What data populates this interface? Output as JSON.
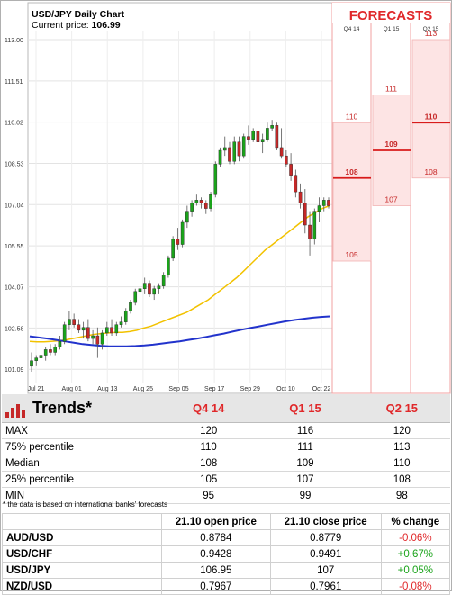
{
  "chart_data": {
    "type": "candlestick",
    "title": "USD/JPY Daily Chart",
    "current_price_label": "Current price:",
    "current_price": "106.99",
    "y_ticks": [
      "113.00",
      "111.51",
      "110.02",
      "108.53",
      "107.04",
      "105.55",
      "104.07",
      "102.58",
      "101.09"
    ],
    "ylim": [
      101.0,
      113.0
    ],
    "x_ticks": [
      "Jul 21",
      "Aug 01",
      "Aug 13",
      "Aug 25",
      "Sep 05",
      "Sep 17",
      "Sep 29",
      "Oct 10",
      "Oct 22"
    ],
    "candles": [
      [
        101.2,
        101.7,
        101.0,
        101.4
      ],
      [
        101.4,
        101.6,
        101.2,
        101.5
      ],
      [
        101.5,
        101.7,
        101.4,
        101.6
      ],
      [
        101.6,
        101.9,
        101.4,
        101.8
      ],
      [
        101.8,
        102.0,
        101.6,
        101.7
      ],
      [
        101.7,
        102.0,
        101.6,
        101.9
      ],
      [
        101.9,
        102.3,
        101.8,
        102.1
      ],
      [
        102.1,
        102.8,
        102.0,
        102.7
      ],
      [
        102.7,
        103.2,
        102.5,
        102.9
      ],
      [
        102.9,
        103.1,
        102.6,
        102.7
      ],
      [
        102.7,
        102.9,
        102.4,
        102.5
      ],
      [
        102.5,
        102.8,
        102.2,
        102.6
      ],
      [
        102.6,
        102.9,
        102.1,
        102.2
      ],
      [
        102.2,
        102.5,
        102.0,
        102.3
      ],
      [
        102.3,
        102.6,
        101.5,
        102.0
      ],
      [
        102.0,
        102.5,
        101.8,
        102.4
      ],
      [
        102.4,
        102.8,
        102.3,
        102.6
      ],
      [
        102.6,
        102.9,
        102.3,
        102.4
      ],
      [
        102.4,
        102.8,
        102.3,
        102.7
      ],
      [
        102.7,
        103.0,
        102.6,
        102.8
      ],
      [
        102.8,
        103.3,
        102.7,
        103.2
      ],
      [
        103.2,
        103.6,
        103.1,
        103.5
      ],
      [
        103.5,
        104.0,
        103.4,
        103.9
      ],
      [
        103.9,
        104.2,
        103.7,
        104.0
      ],
      [
        104.0,
        104.4,
        103.8,
        104.2
      ],
      [
        104.2,
        104.3,
        103.7,
        103.8
      ],
      [
        103.8,
        104.1,
        103.6,
        104.0
      ],
      [
        104.0,
        104.2,
        103.8,
        104.1
      ],
      [
        104.1,
        104.6,
        104.0,
        104.5
      ],
      [
        104.5,
        105.2,
        104.4,
        105.1
      ],
      [
        105.1,
        105.9,
        105.0,
        105.8
      ],
      [
        105.8,
        106.2,
        105.4,
        105.6
      ],
      [
        105.6,
        106.5,
        105.5,
        106.4
      ],
      [
        106.4,
        107.0,
        106.2,
        106.8
      ],
      [
        106.8,
        107.2,
        106.6,
        107.1
      ],
      [
        107.1,
        107.4,
        107.0,
        107.2
      ],
      [
        107.2,
        107.3,
        106.9,
        107.1
      ],
      [
        107.1,
        107.2,
        106.7,
        106.9
      ],
      [
        106.9,
        107.5,
        106.8,
        107.4
      ],
      [
        107.4,
        108.6,
        107.3,
        108.5
      ],
      [
        108.5,
        109.1,
        108.4,
        109.0
      ],
      [
        109.0,
        109.5,
        108.8,
        109.1
      ],
      [
        109.1,
        109.3,
        108.5,
        108.6
      ],
      [
        108.6,
        109.5,
        108.5,
        109.3
      ],
      [
        109.3,
        109.5,
        108.6,
        108.8
      ],
      [
        108.8,
        109.6,
        108.7,
        109.5
      ],
      [
        109.5,
        109.9,
        109.2,
        109.4
      ],
      [
        109.4,
        109.8,
        109.3,
        109.7
      ],
      [
        109.7,
        110.1,
        109.2,
        109.3
      ],
      [
        109.3,
        109.6,
        108.9,
        109.4
      ],
      [
        109.4,
        110.0,
        109.3,
        109.8
      ],
      [
        109.8,
        110.1,
        109.7,
        109.9
      ],
      [
        109.9,
        110.0,
        109.0,
        109.1
      ],
      [
        109.1,
        109.8,
        108.7,
        108.8
      ],
      [
        108.8,
        109.0,
        108.4,
        108.5
      ],
      [
        108.5,
        108.9,
        107.9,
        108.1
      ],
      [
        108.1,
        108.3,
        107.3,
        107.5
      ],
      [
        107.5,
        107.8,
        106.9,
        107.1
      ],
      [
        107.1,
        107.6,
        106.0,
        106.3
      ],
      [
        106.3,
        106.8,
        105.2,
        105.8
      ],
      [
        105.8,
        106.9,
        105.6,
        106.8
      ],
      [
        106.8,
        107.3,
        106.4,
        107.0
      ],
      [
        107.0,
        107.3,
        106.8,
        107.2
      ],
      [
        107.2,
        107.3,
        106.9,
        107.0
      ]
    ],
    "series": [
      {
        "name": "",
        "color": "#f2c200",
        "values": [
          102.1,
          102.08,
          102.08,
          102.1,
          102.12,
          102.15,
          102.2,
          102.25,
          102.3,
          102.35,
          102.38,
          102.4,
          102.42,
          102.42,
          102.45,
          102.5,
          102.58,
          102.65,
          102.75,
          102.85,
          102.95,
          103.05,
          103.15,
          103.3,
          103.45,
          103.6,
          103.8,
          104.0,
          104.2,
          104.4,
          104.65,
          104.9,
          105.15,
          105.4,
          105.6,
          105.8,
          106.0,
          106.2,
          106.4,
          106.6,
          106.75,
          106.9,
          107.0
        ]
      },
      {
        "name": "",
        "color": "#2233cc",
        "values": [
          102.28,
          102.24,
          102.2,
          102.15,
          102.1,
          102.05,
          102.0,
          101.97,
          101.94,
          101.92,
          101.92,
          101.92,
          101.93,
          101.95,
          101.98,
          102.02,
          102.06,
          102.1,
          102.15,
          102.2,
          102.26,
          102.32,
          102.38,
          102.45,
          102.52,
          102.58,
          102.64,
          102.7,
          102.76,
          102.82,
          102.87,
          102.91,
          102.95,
          102.98,
          103.0
        ]
      }
    ]
  },
  "forecasts": {
    "title": "FORECASTS",
    "quarters": [
      "Q4 14",
      "Q1 15",
      "Q2 15"
    ],
    "ranges": [
      {
        "max": "110",
        "median": "108",
        "min": "105",
        "max_v": 110,
        "median_v": 108,
        "min_v": 105
      },
      {
        "max": "111",
        "median": "109",
        "min": "107",
        "max_v": 111,
        "median_v": 109,
        "min_v": 107
      },
      {
        "max": "113",
        "median": "110",
        "min": "108",
        "max_v": 113,
        "median_v": 110,
        "min_v": 108
      }
    ]
  },
  "trends": {
    "title": "Trends*",
    "quarters": [
      "Q4 14",
      "Q1 15",
      "Q2 15"
    ],
    "rows": [
      {
        "label": "MAX",
        "values": [
          "120",
          "116",
          "120"
        ]
      },
      {
        "label": "75% percentile",
        "values": [
          "110",
          "111",
          "113"
        ]
      },
      {
        "label": "Median",
        "values": [
          "108",
          "109",
          "110"
        ]
      },
      {
        "label": "25% percentile",
        "values": [
          "105",
          "107",
          "108"
        ]
      },
      {
        "label": "MIN",
        "values": [
          "95",
          "99",
          "98"
        ]
      }
    ]
  },
  "footnote": "* the data is based on international banks' forecasts",
  "prices": {
    "headers": [
      "",
      "21.10 open price",
      "21.10 close price",
      "% change"
    ],
    "rows": [
      {
        "pair": "AUD/USD",
        "open": "0.8784",
        "close": "0.8779",
        "change": "-0.06%",
        "dir": "neg"
      },
      {
        "pair": "USD/CHF",
        "open": "0.9428",
        "close": "0.9491",
        "change": "+0.67%",
        "dir": "pos"
      },
      {
        "pair": "USD/JPY",
        "open": "106.95",
        "close": "107",
        "change": "+0.05%",
        "dir": "pos"
      },
      {
        "pair": "NZD/USD",
        "open": "0.7967",
        "close": "0.7961",
        "change": "-0.08%",
        "dir": "neg"
      }
    ]
  }
}
